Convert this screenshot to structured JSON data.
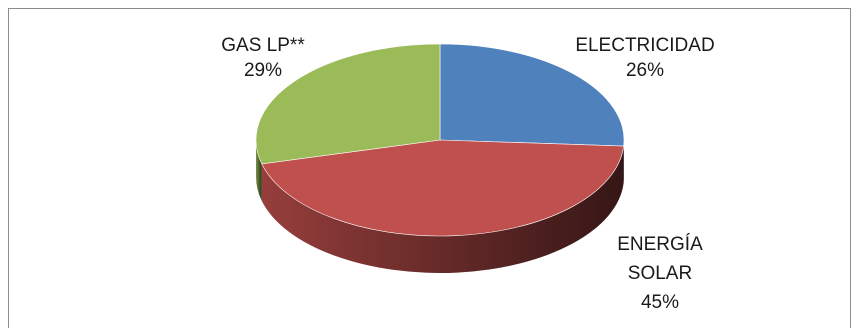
{
  "chart_data": {
    "type": "pie",
    "title": "",
    "slices": [
      {
        "label": "ELECTRICIDAD",
        "value": 26,
        "value_label": "26%",
        "color": "#4f81bd"
      },
      {
        "label": "ENERGÍA SOLAR",
        "value": 45,
        "value_label": "45%",
        "color": "#c0504d"
      },
      {
        "label": "GAS LP**",
        "value": 29,
        "value_label": "29%",
        "color": "#9bbb59"
      }
    ],
    "label_lines": {
      "electricidad": [
        "ELECTRICIDAD"
      ],
      "solar": [
        "ENERGÍA",
        "SOLAR"
      ],
      "gas": [
        "GAS LP**"
      ]
    },
    "style": "3d-pie",
    "legend": "none"
  }
}
